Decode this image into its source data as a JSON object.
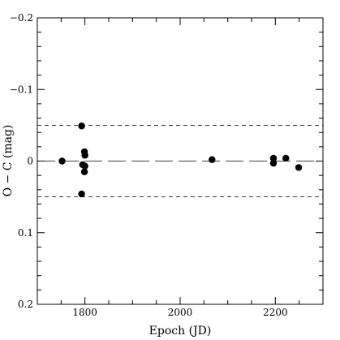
{
  "chart_data": {
    "type": "scatter",
    "title": "",
    "xlabel": "Epoch (JD)",
    "ylabel": "O − C (mag)",
    "xlim": [
      1700,
      2300
    ],
    "ylim": [
      -0.2,
      0.2
    ],
    "y_inverted": true,
    "x_ticks": [
      1800,
      2000,
      2200
    ],
    "x_tick_labels": [
      "1800",
      "2000",
      "2200"
    ],
    "y_ticks": [
      -0.2,
      -0.1,
      0,
      0.1,
      0.2
    ],
    "y_tick_labels": [
      "−0.2",
      "−0.1",
      "0",
      "0.1",
      "0.2"
    ],
    "grid": false,
    "reference_lines": [
      {
        "y": -0.05,
        "style": "short-dash"
      },
      {
        "y": 0,
        "style": "long-dash"
      },
      {
        "y": 0.05,
        "style": "short-dash"
      }
    ],
    "series": [
      {
        "marker": "filled-circle",
        "color": "#000000",
        "points": [
          {
            "x": 1752,
            "y": 0.0
          },
          {
            "x": 1793,
            "y": -0.049
          },
          {
            "x": 1795,
            "y": 0.005
          },
          {
            "x": 1793,
            "y": 0.046
          },
          {
            "x": 1799,
            "y": -0.013
          },
          {
            "x": 1800,
            "y": -0.008
          },
          {
            "x": 1800,
            "y": 0.007
          },
          {
            "x": 1799,
            "y": 0.015
          },
          {
            "x": 2067,
            "y": -0.002
          },
          {
            "x": 2196,
            "y": -0.004
          },
          {
            "x": 2196,
            "y": 0.003
          },
          {
            "x": 2222,
            "y": -0.004
          },
          {
            "x": 2249,
            "y": 0.009
          }
        ]
      }
    ]
  }
}
